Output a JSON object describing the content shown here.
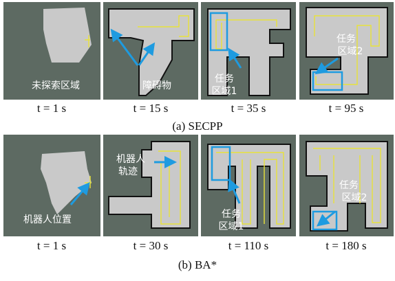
{
  "rows": [
    {
      "caption": "(a)  SECPP",
      "panels": [
        {
          "time": "t = 1 s",
          "annotations": [
            "未探索区域"
          ]
        },
        {
          "time": "t = 15 s",
          "annotations": [
            "障碍物"
          ]
        },
        {
          "time": "t = 35 s",
          "annotations": [
            "任务",
            "区域1"
          ]
        },
        {
          "time": "t = 95 s",
          "annotations": [
            "任务",
            "区域2"
          ]
        }
      ]
    },
    {
      "caption": "(b)  BA*",
      "panels": [
        {
          "time": "t = 1 s",
          "annotations": [
            "机器人位置"
          ]
        },
        {
          "time": "t = 30 s",
          "annotations": [
            "机器人",
            "轨迹"
          ]
        },
        {
          "time": "t = 110 s",
          "annotations": [
            "任务",
            "区域1"
          ]
        },
        {
          "time": "t = 180 s",
          "annotations": [
            "任务",
            "区域2"
          ]
        }
      ]
    }
  ]
}
